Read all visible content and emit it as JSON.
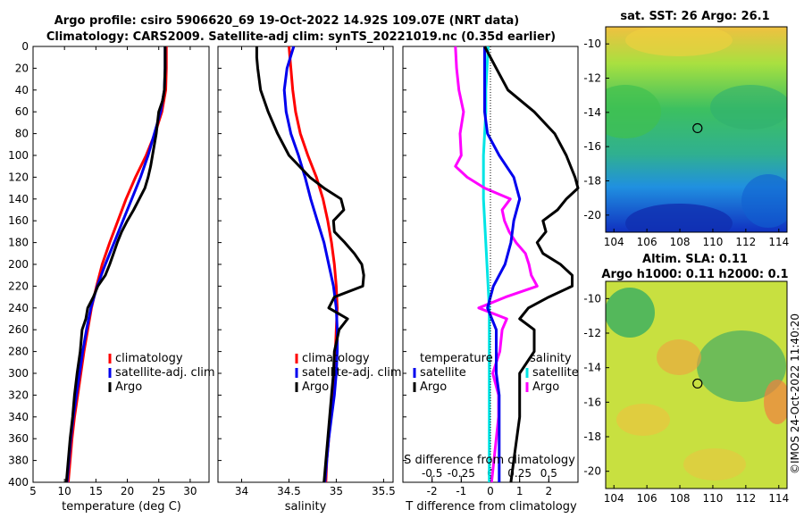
{
  "header": {
    "title_line1": "Argo profile: csiro 5906620_69 19-Oct-2022 14.92S 109.07E (NRT data)",
    "title_line2": "Climatology: CARS2009. Satellite-adj clim: synTS_20221019.nc (0.35d earlier)"
  },
  "watermark": "©IMOS 24-Oct-2022 11:40:20",
  "colors": {
    "climatology": "#ff0000",
    "satellite": "#0000ee",
    "argo": "#000000",
    "temp_diff": "#00e5e5",
    "sal_diff": "#ff00ff"
  },
  "chart_data": [
    {
      "type": "line",
      "id": "temperature-profile",
      "xlabel": "temperature (deg C)",
      "ylabel": "",
      "xlim": [
        5,
        33
      ],
      "ylim": [
        400,
        0
      ],
      "xticks": [
        5,
        10,
        15,
        20,
        25,
        30
      ],
      "yticks": [
        0,
        20,
        40,
        60,
        80,
        100,
        120,
        140,
        160,
        180,
        200,
        220,
        240,
        260,
        280,
        300,
        320,
        340,
        360,
        380,
        400
      ],
      "legend": [
        "climatology",
        "satellite-adj. clim",
        "Argo"
      ],
      "series": [
        {
          "name": "climatology",
          "depth": [
            0,
            20,
            40,
            60,
            80,
            100,
            120,
            140,
            160,
            180,
            200,
            220,
            240,
            260,
            280,
            300,
            320,
            340,
            360,
            380,
            400
          ],
          "values": [
            26.2,
            26.2,
            26.1,
            25.5,
            24.4,
            23,
            21.3,
            19.8,
            18.5,
            17.2,
            16,
            15.1,
            14.3,
            13.7,
            13.1,
            12.6,
            12.1,
            11.6,
            11.2,
            10.9,
            10.6
          ]
        },
        {
          "name": "satellite-adj. clim",
          "depth": [
            0,
            20,
            40,
            60,
            80,
            100,
            120,
            140,
            160,
            180,
            200,
            220,
            240,
            260,
            280,
            300,
            320,
            340,
            360,
            380,
            400
          ],
          "values": [
            26,
            26,
            25.9,
            25.3,
            24.3,
            23.3,
            22.1,
            20.7,
            19.3,
            17.9,
            16.5,
            15.2,
            14.2,
            13.5,
            12.9,
            12.4,
            11.9,
            11.4,
            11,
            10.7,
            10.4
          ]
        },
        {
          "name": "Argo",
          "depth": [
            0,
            20,
            40,
            50,
            60,
            80,
            100,
            110,
            120,
            130,
            140,
            150,
            160,
            170,
            180,
            190,
            200,
            210,
            220,
            230,
            240,
            250,
            260,
            280,
            300,
            320,
            340,
            360,
            380,
            400
          ],
          "values": [
            26,
            26,
            25.9,
            25.6,
            25,
            24.6,
            24,
            23.7,
            23.3,
            22.8,
            21.9,
            21,
            20,
            19.1,
            18.4,
            17.8,
            17.2,
            16.5,
            15.3,
            14.6,
            13.7,
            13.4,
            12.8,
            12.5,
            12,
            11.6,
            11.3,
            10.9,
            10.6,
            10.3
          ]
        }
      ]
    },
    {
      "type": "line",
      "id": "salinity-profile",
      "xlabel": "salinity",
      "ylabel": "",
      "xlim": [
        33.75,
        35.6
      ],
      "ylim": [
        400,
        0
      ],
      "xticks": [
        34,
        34.5,
        35,
        35.5
      ],
      "legend": [
        "climatology",
        "satellite-adj. clim",
        "Argo"
      ],
      "series": [
        {
          "name": "climatology",
          "depth": [
            0,
            20,
            40,
            60,
            80,
            100,
            120,
            140,
            160,
            180,
            200,
            220,
            240,
            260,
            280,
            300,
            320,
            340,
            360,
            380,
            400
          ],
          "values": [
            34.5,
            34.52,
            34.54,
            34.57,
            34.62,
            34.7,
            34.79,
            34.86,
            34.91,
            34.95,
            34.98,
            35.0,
            35.01,
            35.0,
            34.99,
            34.98,
            34.96,
            34.94,
            34.92,
            34.9,
            34.89
          ]
        },
        {
          "name": "satellite-adj. clim",
          "depth": [
            0,
            20,
            40,
            60,
            80,
            100,
            120,
            140,
            160,
            180,
            200,
            220,
            240,
            260,
            280,
            300,
            320,
            340,
            360,
            380,
            400
          ],
          "values": [
            34.55,
            34.48,
            34.45,
            34.47,
            34.52,
            34.6,
            34.67,
            34.73,
            34.8,
            34.87,
            34.92,
            34.97,
            35.0,
            35.01,
            35.01,
            35.0,
            34.98,
            34.95,
            34.92,
            34.9,
            34.88
          ]
        },
        {
          "name": "Argo",
          "depth": [
            0,
            10,
            20,
            40,
            60,
            80,
            100,
            120,
            130,
            140,
            150,
            160,
            170,
            180,
            190,
            200,
            210,
            220,
            230,
            240,
            250,
            260,
            280,
            300,
            320,
            340,
            360,
            380,
            400
          ],
          "values": [
            34.16,
            34.16,
            34.17,
            34.2,
            34.28,
            34.38,
            34.5,
            34.72,
            34.87,
            35.05,
            35.08,
            34.97,
            34.98,
            35.09,
            35.19,
            35.27,
            35.29,
            35.28,
            34.98,
            34.92,
            35.12,
            35.03,
            34.98,
            34.97,
            34.95,
            34.93,
            34.91,
            34.89,
            34.87
          ]
        }
      ]
    },
    {
      "type": "line",
      "id": "difference-profile",
      "xlabel": "T difference from climatology",
      "x2label": "S difference from climatology",
      "xlim": [
        -3,
        3
      ],
      "x2lim": [
        -0.75,
        0.75
      ],
      "ylim": [
        400,
        0
      ],
      "xticks": [
        -2,
        -1,
        0,
        1,
        2
      ],
      "x2ticks": [
        -0.5,
        -0.25,
        0,
        0.25,
        0.5
      ],
      "legend_temperature_title": "temperature",
      "legend_salinity_title": "salinity",
      "legend": [
        "satellite",
        "Argo"
      ],
      "series": [
        {
          "name": "temperature satellite",
          "depth": [
            0,
            20,
            40,
            60,
            80,
            100,
            120,
            140,
            160,
            180,
            200,
            220,
            240,
            260,
            280,
            300,
            320,
            340,
            360,
            380,
            400
          ],
          "values": [
            -0.2,
            -0.2,
            -0.2,
            -0.2,
            -0.1,
            0.3,
            0.8,
            1.0,
            0.8,
            0.7,
            0.5,
            0.1,
            -0.1,
            0.2,
            0.2,
            0.2,
            0.3,
            0.3,
            0.3,
            0.3,
            0.3
          ]
        },
        {
          "name": "temperature Argo",
          "depth": [
            0,
            20,
            40,
            60,
            80,
            100,
            120,
            130,
            140,
            150,
            160,
            170,
            180,
            190,
            200,
            210,
            220,
            230,
            240,
            250,
            260,
            280,
            300,
            320,
            340,
            360,
            380,
            400
          ],
          "values": [
            -0.2,
            0.2,
            0.6,
            1.5,
            2.2,
            2.6,
            2.9,
            3.0,
            2.6,
            2.3,
            1.8,
            1.9,
            1.6,
            1.8,
            2.4,
            2.8,
            2.8,
            2.0,
            1.3,
            1.0,
            1.5,
            1.5,
            1.0,
            1.0,
            1.0,
            0.9,
            0.8,
            0.7
          ]
        },
        {
          "name": "salinity satellite",
          "depth": [
            0,
            20,
            40,
            60,
            80,
            100,
            120,
            140,
            160,
            180,
            200,
            220,
            240,
            260,
            280,
            300,
            320,
            340,
            360,
            380,
            400
          ],
          "values": [
            -0.02,
            -0.03,
            -0.04,
            -0.04,
            -0.05,
            -0.06,
            -0.06,
            -0.06,
            -0.05,
            -0.04,
            -0.03,
            -0.02,
            -0.01,
            -0.01,
            -0.01,
            -0.01,
            -0.01,
            -0.01,
            -0.01,
            -0.01,
            -0.01
          ]
        },
        {
          "name": "salinity Argo",
          "depth": [
            0,
            20,
            40,
            60,
            80,
            100,
            110,
            120,
            130,
            140,
            150,
            160,
            170,
            180,
            190,
            200,
            210,
            220,
            230,
            240,
            250,
            260,
            280,
            300,
            320,
            340,
            360,
            380,
            400
          ],
          "values": [
            -0.3,
            -0.29,
            -0.27,
            -0.23,
            -0.26,
            -0.25,
            -0.3,
            -0.2,
            -0.05,
            0.17,
            0.1,
            0.12,
            0.16,
            0.22,
            0.3,
            0.33,
            0.35,
            0.4,
            0.13,
            -0.1,
            0.14,
            0.1,
            0.08,
            0.02,
            0.07,
            0.07,
            0.05,
            0.03,
            0.01
          ]
        }
      ]
    },
    {
      "type": "heatmap",
      "id": "sst-map",
      "title": "sat. SST: 26 Argo: 26.1",
      "xlim": [
        103.5,
        114.5
      ],
      "ylim": [
        -21,
        -9
      ],
      "xticks": [
        104,
        106,
        108,
        110,
        112,
        114
      ],
      "yticks": [
        -10,
        -12,
        -14,
        -16,
        -18,
        -20
      ],
      "profile_marker": {
        "lon": 109.07,
        "lat": -14.92
      }
    },
    {
      "type": "heatmap",
      "id": "sla-map",
      "title_line1": "Altim. SLA: 0.11",
      "title_line2": "Argo h1000: 0.11 h2000: 0.1",
      "xlim": [
        103.5,
        114.5
      ],
      "ylim": [
        -21,
        -9
      ],
      "xticks": [
        104,
        106,
        108,
        110,
        112,
        114
      ],
      "yticks": [
        -10,
        -12,
        -14,
        -16,
        -18,
        -20
      ],
      "profile_marker": {
        "lon": 109.07,
        "lat": -14.92
      }
    }
  ]
}
